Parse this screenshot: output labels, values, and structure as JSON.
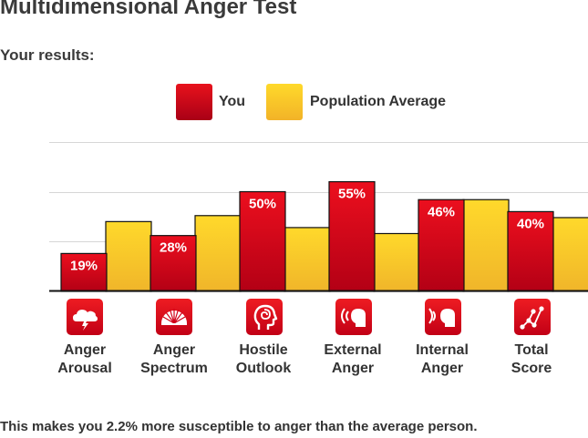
{
  "title": "Multidimensional Anger Test",
  "subtitle": "Your results:",
  "legend": {
    "you": "You",
    "population": "Population Average",
    "you_color": "#d4001a",
    "population_color": "#f5c02a"
  },
  "chart_data": {
    "type": "bar",
    "categories": [
      "Anger Arousal",
      "Anger Spectrum",
      "Hostile Outlook",
      "External Anger",
      "Internal Anger",
      "Total Score"
    ],
    "category_lines": [
      [
        "Anger",
        "Arousal"
      ],
      [
        "Anger",
        "Spectrum"
      ],
      [
        "Hostile",
        "Outlook"
      ],
      [
        "External",
        "Anger"
      ],
      [
        "Internal",
        "Anger"
      ],
      [
        "Total",
        "Score"
      ]
    ],
    "icons": [
      "storm-cloud-icon",
      "spectrum-fan-icon",
      "head-maze-icon",
      "person-shouting-icon",
      "person-listening-icon",
      "graph-nodes-icon"
    ],
    "series": [
      {
        "name": "You",
        "values": [
          19,
          28,
          50,
          55,
          46,
          40
        ],
        "labels": [
          "19%",
          "28%",
          "50%",
          "55%",
          "46%",
          "40%"
        ]
      },
      {
        "name": "Population Average",
        "values": [
          35,
          38,
          32,
          29,
          46,
          37
        ]
      }
    ],
    "ylim": [
      0,
      100
    ],
    "grid": true,
    "legend_position": "top"
  },
  "footer": "This makes you 2.2% more susceptible to anger than the average person."
}
